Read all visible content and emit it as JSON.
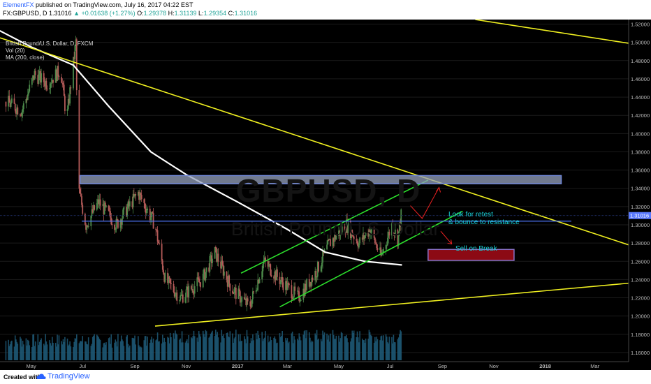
{
  "header": {
    "author": "ElementFX",
    "published": "published on TradingView.com, July 16, 2017 04:22 EST",
    "symbol": "FX:GBPUSD, D",
    "last": "1.31016",
    "change": "▲ +0.01638 (+1.27%)",
    "o_label": "O:",
    "o": "1.29378",
    "h_label": "H:",
    "h": "1.31139",
    "l_label": "L:",
    "l": "1.29354",
    "c_label": "C:",
    "c": "1.31016"
  },
  "legend": {
    "name": "British Pound/U.S. Dollar, D, FXCM",
    "vol": "Vol (20)",
    "ma": "MA (200, close)"
  },
  "watermark": {
    "symbol": "GBPUSD, D",
    "name": "British Pound/U.S. Dollar"
  },
  "annotations": {
    "retest_line1": "Look for retest",
    "retest_line2": "& bounce to resistance",
    "sell": "Sell on Break"
  },
  "footer": {
    "created": "Created with",
    "brand": "TradingView"
  },
  "colors": {
    "background": "#000000",
    "candle_up": "#4c8a4a",
    "candle_down": "#b35a58",
    "ma": "#ffffff",
    "trendline": "#f0f020",
    "channel": "#2ce02c",
    "zone_fill": "#97a3bf",
    "zone_border": "#6f86d6",
    "sell_box": "#8c0a14",
    "arrow": "#ee2222",
    "volume": "#1f5a78",
    "current_price": "#5a7aff"
  },
  "chart_data": {
    "type": "candlestick",
    "x_tick_labels": [
      "May",
      "Jul",
      "Sep",
      "Nov",
      "2017",
      "Mar",
      "May",
      "Jul",
      "Sep",
      "Nov",
      "2018",
      "Mar"
    ],
    "y_tick_labels": [
      "1.52000",
      "1.50000",
      "1.48000",
      "1.46000",
      "1.44000",
      "1.42000",
      "1.40000",
      "1.38000",
      "1.36000",
      "1.34000",
      "1.32000",
      "1.30000",
      "1.28000",
      "1.26000",
      "1.24000",
      "1.22000",
      "1.20000",
      "1.18000",
      "1.16000"
    ],
    "ylim": [
      1.15,
      1.525
    ],
    "current_price_label": "1.31016",
    "price_path": [
      {
        "date": "2016-04-01",
        "price": 1.435
      },
      {
        "date": "2016-04-20",
        "price": 1.425
      },
      {
        "date": "2016-05-05",
        "price": 1.465
      },
      {
        "date": "2016-05-20",
        "price": 1.455
      },
      {
        "date": "2016-06-05",
        "price": 1.47
      },
      {
        "date": "2016-06-12",
        "price": 1.415
      },
      {
        "date": "2016-06-23",
        "price": 1.5
      },
      {
        "date": "2016-06-26",
        "price": 1.34
      },
      {
        "date": "2016-07-05",
        "price": 1.3
      },
      {
        "date": "2016-07-20",
        "price": 1.325
      },
      {
        "date": "2016-08-10",
        "price": 1.3
      },
      {
        "date": "2016-09-05",
        "price": 1.335
      },
      {
        "date": "2016-09-25",
        "price": 1.3
      },
      {
        "date": "2016-10-07",
        "price": 1.24
      },
      {
        "date": "2016-10-25",
        "price": 1.22
      },
      {
        "date": "2016-11-20",
        "price": 1.24
      },
      {
        "date": "2016-12-05",
        "price": 1.27
      },
      {
        "date": "2016-12-25",
        "price": 1.23
      },
      {
        "date": "2017-01-15",
        "price": 1.21
      },
      {
        "date": "2017-02-01",
        "price": 1.26
      },
      {
        "date": "2017-02-20",
        "price": 1.24
      },
      {
        "date": "2017-03-14",
        "price": 1.22
      },
      {
        "date": "2017-04-05",
        "price": 1.25
      },
      {
        "date": "2017-04-20",
        "price": 1.28
      },
      {
        "date": "2017-05-10",
        "price": 1.3
      },
      {
        "date": "2017-05-25",
        "price": 1.28
      },
      {
        "date": "2017-06-07",
        "price": 1.295
      },
      {
        "date": "2017-06-20",
        "price": 1.265
      },
      {
        "date": "2017-07-03",
        "price": 1.3
      },
      {
        "date": "2017-07-10",
        "price": 1.285
      },
      {
        "date": "2017-07-14",
        "price": 1.31
      }
    ],
    "ma_200": [
      {
        "date": "2016-03-20",
        "price": 1.515
      },
      {
        "date": "2016-05-01",
        "price": 1.495
      },
      {
        "date": "2016-06-20",
        "price": 1.475
      },
      {
        "date": "2016-08-01",
        "price": 1.43
      },
      {
        "date": "2016-09-20",
        "price": 1.38
      },
      {
        "date": "2016-11-01",
        "price": 1.355
      },
      {
        "date": "2017-01-01",
        "price": 1.325
      },
      {
        "date": "2017-03-01",
        "price": 1.295
      },
      {
        "date": "2017-04-15",
        "price": 1.27
      },
      {
        "date": "2017-06-01",
        "price": 1.26
      },
      {
        "date": "2017-07-15",
        "price": 1.256
      }
    ],
    "drawings": {
      "resistance_zone": {
        "start": "2016-06-28",
        "end": "2018-01-20",
        "low": 1.345,
        "high": 1.354
      },
      "horizontal_line": {
        "start": "2016-06-30",
        "end": "2018-02-01",
        "price": 1.304
      },
      "current_price": 1.31016
    }
  }
}
